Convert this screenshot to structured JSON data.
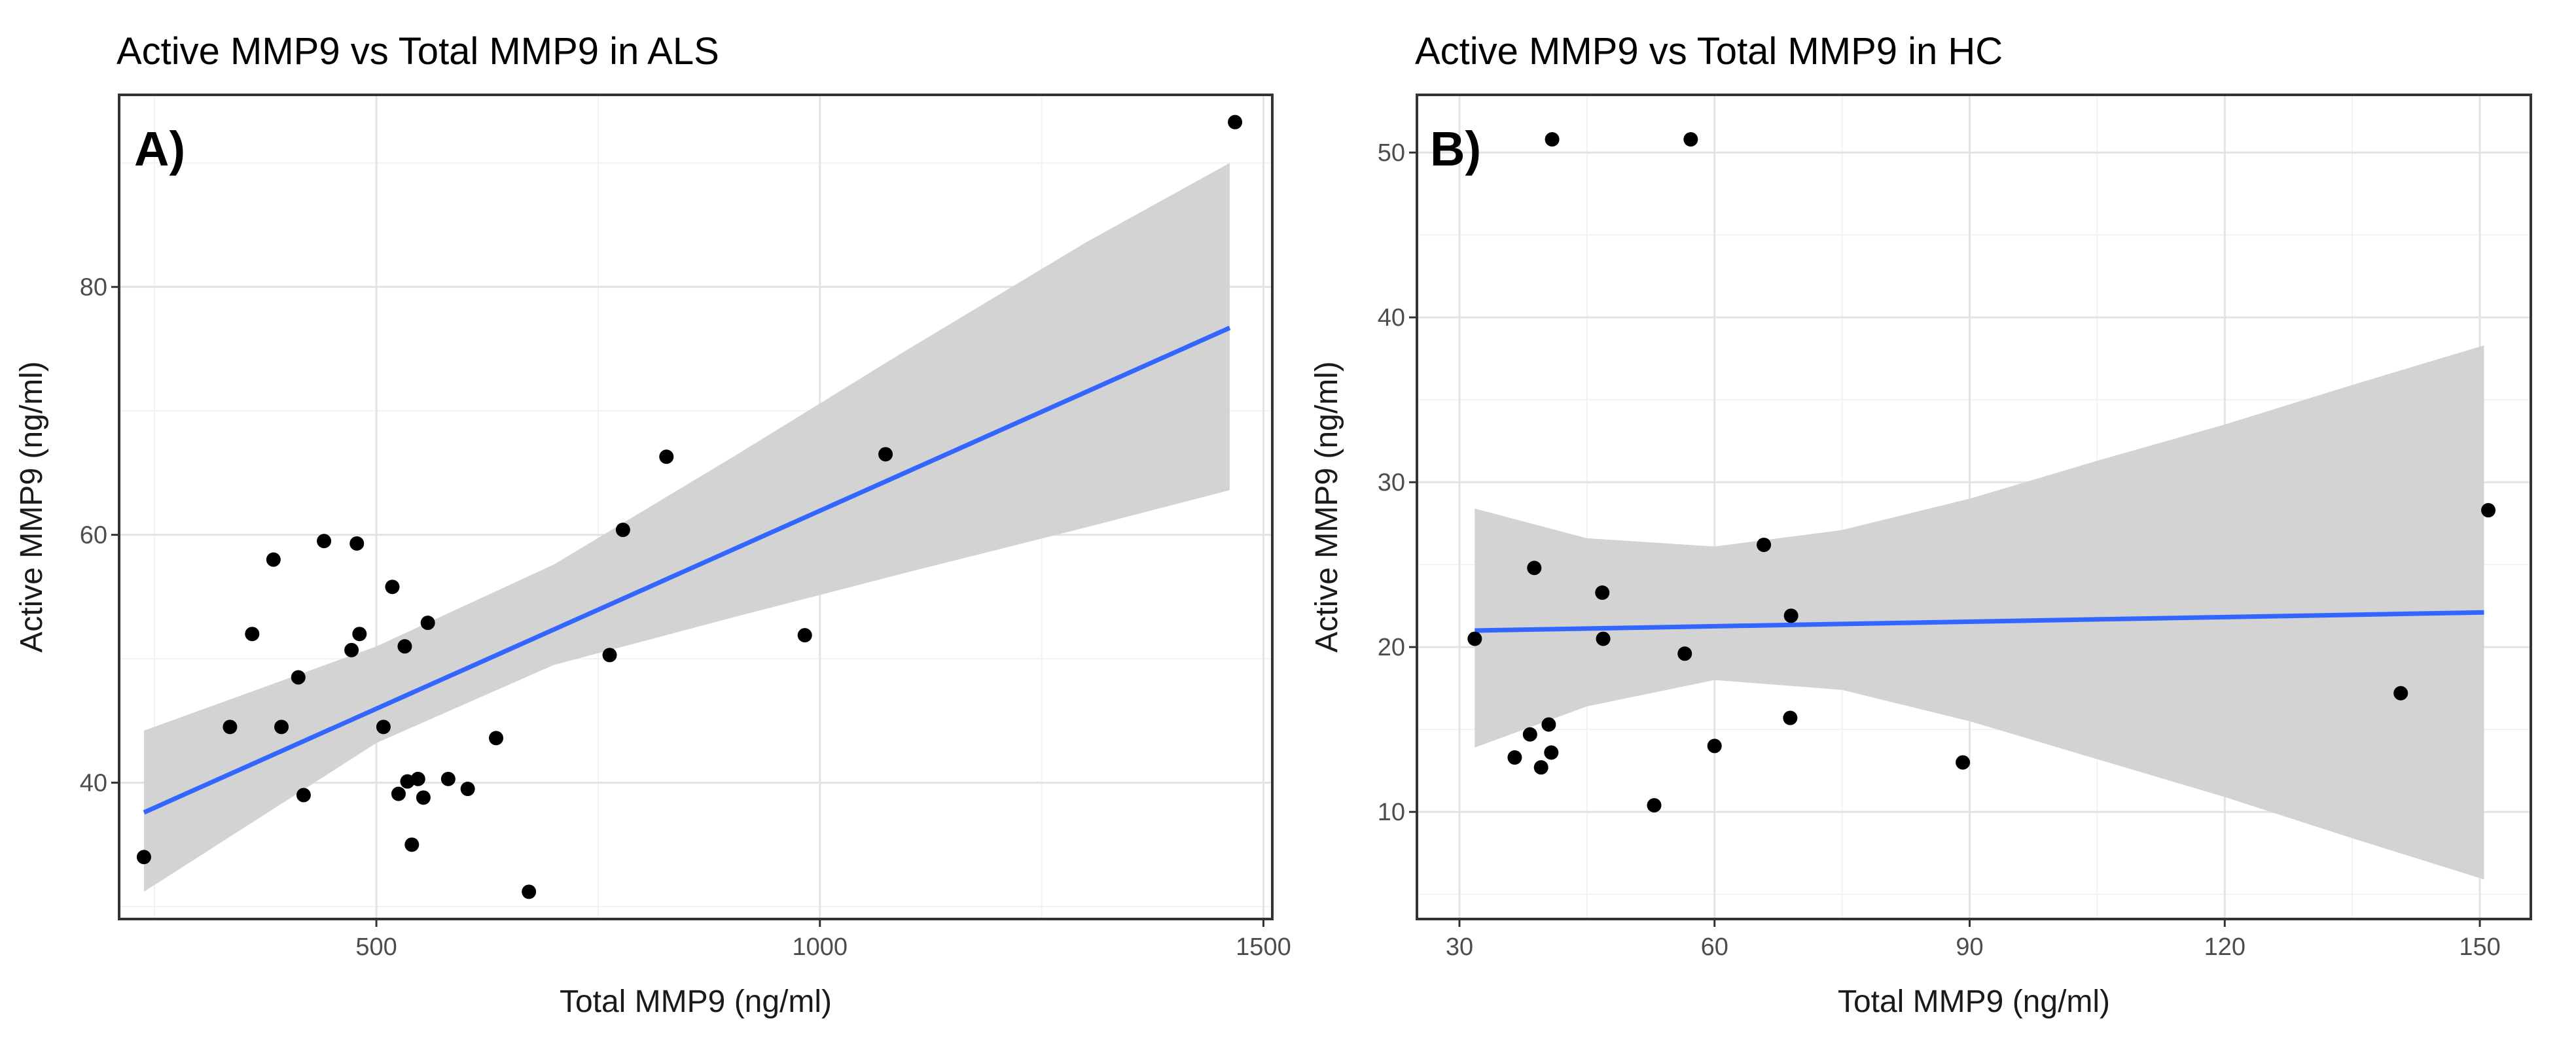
{
  "chart_data": [
    {
      "type": "scatter",
      "title": "Active MMP9 vs Total MMP9 in ALS",
      "panel_label": "A)",
      "xlabel": "Total MMP9 (ng/ml)",
      "ylabel": "Active MMP9 (ng/ml)",
      "xlim": [
        210,
        1510
      ],
      "ylim": [
        29,
        95.5
      ],
      "x_ticks": [
        500,
        1000,
        1500
      ],
      "x_tick_labels": [
        "500",
        "1000",
        "1500"
      ],
      "y_ticks": [
        40,
        60,
        80
      ],
      "y_tick_labels": [
        "40",
        "60",
        "80"
      ],
      "grid": true,
      "points": [
        {
          "x": 238,
          "y": 34
        },
        {
          "x": 335,
          "y": 44.5
        },
        {
          "x": 360,
          "y": 52
        },
        {
          "x": 384,
          "y": 58
        },
        {
          "x": 393,
          "y": 44.5
        },
        {
          "x": 412,
          "y": 48.5
        },
        {
          "x": 418,
          "y": 39
        },
        {
          "x": 441,
          "y": 59.5
        },
        {
          "x": 472,
          "y": 50.7
        },
        {
          "x": 478,
          "y": 59.3
        },
        {
          "x": 481,
          "y": 52
        },
        {
          "x": 508,
          "y": 44.5
        },
        {
          "x": 518,
          "y": 55.8
        },
        {
          "x": 525,
          "y": 39.1
        },
        {
          "x": 532,
          "y": 51
        },
        {
          "x": 535,
          "y": 40.1
        },
        {
          "x": 540,
          "y": 35
        },
        {
          "x": 547,
          "y": 40.3
        },
        {
          "x": 553,
          "y": 38.8
        },
        {
          "x": 558,
          "y": 52.9
        },
        {
          "x": 581,
          "y": 40.3
        },
        {
          "x": 603,
          "y": 39.5
        },
        {
          "x": 635,
          "y": 43.6
        },
        {
          "x": 672,
          "y": 31.2
        },
        {
          "x": 763,
          "y": 50.3
        },
        {
          "x": 778,
          "y": 60.4
        },
        {
          "x": 827,
          "y": 66.3
        },
        {
          "x": 983,
          "y": 51.9
        },
        {
          "x": 1074,
          "y": 66.5
        },
        {
          "x": 1468,
          "y": 93.3
        }
      ],
      "fit_line": {
        "x": [
          238,
          1462
        ],
        "y": [
          37.6,
          76.7
        ],
        "color": "#3366ff"
      },
      "confidence_band": {
        "color": "#d3d3d3",
        "x": [
          238,
          500,
          700,
          900,
          1100,
          1300,
          1462
        ],
        "lower": [
          31.2,
          43.2,
          49.5,
          53.3,
          57.0,
          60.6,
          63.6
        ],
        "upper": [
          44.2,
          51.0,
          57.6,
          66.2,
          75.0,
          83.6,
          90.0
        ]
      },
      "point_color": "#000000"
    },
    {
      "type": "scatter",
      "title": "Active MMP9 vs Total MMP9 in HC",
      "panel_label": "B)",
      "xlabel": "Total MMP9 (ng/ml)",
      "ylabel": "Active MMP9 (ng/ml)",
      "xlim": [
        25,
        156
      ],
      "ylim": [
        3.5,
        53.5
      ],
      "x_ticks": [
        30,
        60,
        90,
        120,
        150
      ],
      "x_tick_labels": [
        "30",
        "60",
        "90",
        "120",
        "150"
      ],
      "y_ticks": [
        10,
        20,
        30,
        40,
        50
      ],
      "y_tick_labels": [
        "10",
        "20",
        "30",
        "40",
        "50"
      ],
      "grid": true,
      "points": [
        {
          "x": 31.8,
          "y": 20.5
        },
        {
          "x": 36.5,
          "y": 13.3
        },
        {
          "x": 38.3,
          "y": 14.7
        },
        {
          "x": 38.8,
          "y": 24.8
        },
        {
          "x": 39.6,
          "y": 12.7
        },
        {
          "x": 40.5,
          "y": 15.3
        },
        {
          "x": 40.8,
          "y": 13.6
        },
        {
          "x": 40.9,
          "y": 50.8
        },
        {
          "x": 46.8,
          "y": 23.3
        },
        {
          "x": 46.9,
          "y": 20.5
        },
        {
          "x": 52.9,
          "y": 10.4
        },
        {
          "x": 56.5,
          "y": 19.6
        },
        {
          "x": 57.2,
          "y": 50.8
        },
        {
          "x": 60.0,
          "y": 14.0
        },
        {
          "x": 65.8,
          "y": 26.2
        },
        {
          "x": 68.9,
          "y": 15.7
        },
        {
          "x": 69.0,
          "y": 21.9
        },
        {
          "x": 89.2,
          "y": 13.0
        },
        {
          "x": 140.7,
          "y": 17.2
        },
        {
          "x": 151.0,
          "y": 28.3
        }
      ],
      "fit_line": {
        "x": [
          31.8,
          150.5
        ],
        "y": [
          21.0,
          22.1
        ],
        "color": "#3366ff"
      },
      "confidence_band": {
        "color": "#d3d3d3",
        "x": [
          31.8,
          45,
          60,
          75,
          90,
          105,
          120,
          135,
          150.5
        ],
        "lower": [
          13.9,
          16.4,
          18.0,
          17.4,
          15.5,
          13.2,
          10.9,
          8.4,
          5.9
        ],
        "upper": [
          28.4,
          26.6,
          26.1,
          27.1,
          29.0,
          31.3,
          33.5,
          35.9,
          38.3
        ]
      },
      "point_color": "#000000"
    }
  ]
}
